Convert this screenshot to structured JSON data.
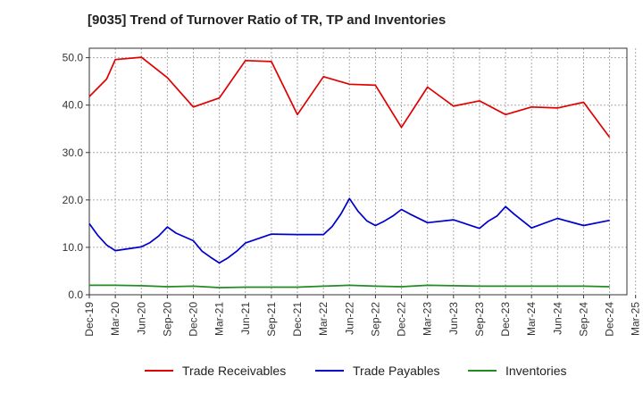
{
  "chart_data": {
    "type": "line",
    "title": "[9035]  Trend of Turnover Ratio of TR, TP and Inventories",
    "x": [
      "Dec-19",
      "Jan-20",
      "Feb-20",
      "Mar-20",
      "Apr-20",
      "May-20",
      "Jun-20",
      "Jul-20",
      "Aug-20",
      "Sep-20",
      "Oct-20",
      "Nov-20",
      "Dec-20",
      "Jan-21",
      "Feb-21",
      "Mar-21",
      "Apr-21",
      "May-21",
      "Jun-21",
      "Jul-21",
      "Aug-21",
      "Sep-21",
      "Oct-21",
      "Nov-21",
      "Dec-21",
      "Jan-22",
      "Feb-22",
      "Mar-22",
      "Apr-22",
      "May-22",
      "Jun-22",
      "Jul-22",
      "Aug-22",
      "Sep-22",
      "Oct-22",
      "Nov-22",
      "Dec-22",
      "Jan-23",
      "Feb-23",
      "Mar-23",
      "Apr-23",
      "May-23",
      "Jun-23",
      "Jul-23",
      "Aug-23",
      "Sep-23",
      "Oct-23",
      "Nov-23",
      "Dec-23",
      "Jan-24",
      "Feb-24",
      "Mar-24",
      "Apr-24",
      "May-24",
      "Jun-24",
      "Jul-24",
      "Aug-24",
      "Sep-24",
      "Oct-24",
      "Nov-24",
      "Dec-24"
    ],
    "x_tick_labels": [
      "Dec-19",
      "Mar-20",
      "Jun-20",
      "Sep-20",
      "Dec-20",
      "Mar-21",
      "Jun-21",
      "Sep-21",
      "Dec-21",
      "Mar-22",
      "Jun-22",
      "Sep-22",
      "Dec-22",
      "Mar-23",
      "Jun-23",
      "Sep-23",
      "Dec-23",
      "Mar-24",
      "Jun-24",
      "Sep-24",
      "Dec-24",
      "Mar-25"
    ],
    "y_ticks": [
      "0.0",
      "10.0",
      "20.0",
      "30.0",
      "40.0",
      "50.0"
    ],
    "ylim": [
      0,
      52
    ],
    "grid": true,
    "legend_position": "bottom",
    "series": [
      {
        "name": "Trade Receivables",
        "color": "#e00000",
        "values": [
          41.8,
          null,
          45.5,
          49.6,
          null,
          null,
          50.1,
          null,
          null,
          45.8,
          null,
          null,
          39.6,
          null,
          null,
          41.5,
          null,
          null,
          49.4,
          null,
          null,
          49.2,
          null,
          null,
          38.0,
          null,
          null,
          46.0,
          null,
          null,
          44.4,
          null,
          null,
          44.2,
          null,
          null,
          35.3,
          null,
          null,
          43.8,
          null,
          null,
          39.8,
          null,
          null,
          40.9,
          null,
          null,
          38.0,
          null,
          null,
          39.6,
          null,
          null,
          39.4,
          null,
          null,
          40.6,
          null,
          null,
          33.2
        ]
      },
      {
        "name": "Trade Payables",
        "color": "#0000cc",
        "values": [
          15.0,
          12.5,
          10.5,
          9.3,
          null,
          null,
          10.1,
          11.0,
          12.4,
          14.3,
          13.0,
          null,
          11.4,
          9.2,
          7.9,
          6.7,
          7.8,
          9.2,
          10.9,
          null,
          null,
          12.8,
          null,
          null,
          12.7,
          null,
          null,
          12.7,
          14.4,
          17.0,
          20.3,
          17.6,
          15.6,
          14.6,
          15.5,
          16.6,
          18.0,
          17.0,
          null,
          15.2,
          null,
          null,
          15.8,
          null,
          null,
          14.0,
          15.5,
          16.6,
          18.6,
          17.0,
          null,
          14.1,
          null,
          null,
          16.1,
          null,
          null,
          14.6,
          null,
          null,
          15.7
        ]
      },
      {
        "name": "Inventories",
        "color": "#228b22",
        "values": [
          2.0,
          null,
          null,
          2.0,
          null,
          null,
          1.9,
          null,
          null,
          1.7,
          null,
          null,
          1.8,
          null,
          null,
          1.5,
          null,
          null,
          1.6,
          null,
          null,
          1.6,
          null,
          null,
          1.6,
          null,
          null,
          1.8,
          null,
          null,
          2.0,
          null,
          null,
          1.8,
          null,
          null,
          1.7,
          null,
          null,
          2.0,
          null,
          null,
          1.9,
          null,
          null,
          1.8,
          null,
          null,
          1.8,
          null,
          null,
          1.8,
          null,
          null,
          1.8,
          null,
          null,
          1.8,
          null,
          null,
          1.7
        ]
      }
    ]
  }
}
